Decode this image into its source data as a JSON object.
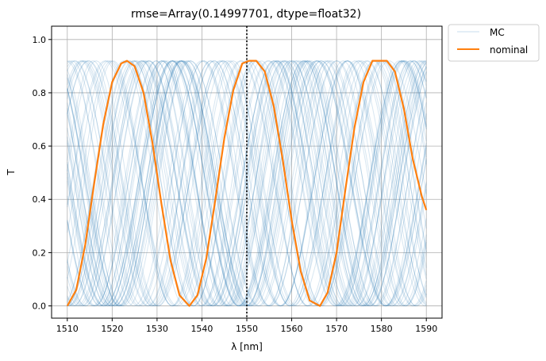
{
  "chart_data": {
    "type": "line",
    "title": "rmse=Array(0.14997701, dtype=float32)",
    "xlabel": "λ [nm]",
    "ylabel": "T",
    "xlim": [
      1506.5,
      1593.5
    ],
    "ylim": [
      -0.046,
      1.05
    ],
    "xticks": [
      1510,
      1520,
      1530,
      1540,
      1550,
      1560,
      1570,
      1580,
      1590
    ],
    "yticks": [
      0.0,
      0.2,
      0.4,
      0.6,
      0.8,
      1.0
    ],
    "xtick_labels": [
      "1510",
      "1520",
      "1530",
      "1540",
      "1550",
      "1560",
      "1570",
      "1580",
      "1590"
    ],
    "ytick_labels": [
      "0.0",
      "0.2",
      "0.4",
      "0.6",
      "0.8",
      "1.0"
    ],
    "grid": true,
    "legend_position": "outside-top-right",
    "vline": {
      "x": 1550,
      "style": "dotted"
    },
    "series": [
      {
        "name": "MC",
        "color": "#1f77b4",
        "note_visual": "many faint Monte-Carlo sinusoids",
        "amplitude_max": 0.92,
        "period_nm_range": [
          26,
          32
        ]
      },
      {
        "name": "nominal",
        "color": "#ff7f0e",
        "x": [
          1510,
          1512,
          1514,
          1516,
          1518,
          1520,
          1522,
          1523.3,
          1525,
          1527,
          1529,
          1531,
          1533,
          1535,
          1537.2,
          1539,
          1541,
          1543,
          1545,
          1547,
          1549,
          1550.5,
          1552.1,
          1554,
          1556,
          1558,
          1560,
          1562,
          1564,
          1566.3,
          1568,
          1570,
          1572,
          1574,
          1576,
          1578,
          1580,
          1581.2,
          1583,
          1585,
          1587,
          1589,
          1590
        ],
        "y": [
          0.0,
          0.06,
          0.23,
          0.46,
          0.68,
          0.84,
          0.91,
          0.92,
          0.9,
          0.8,
          0.61,
          0.38,
          0.17,
          0.04,
          0.0,
          0.04,
          0.18,
          0.4,
          0.63,
          0.81,
          0.91,
          0.92,
          0.92,
          0.88,
          0.75,
          0.55,
          0.32,
          0.13,
          0.02,
          0.0,
          0.05,
          0.2,
          0.44,
          0.67,
          0.84,
          0.92,
          0.92,
          0.92,
          0.88,
          0.74,
          0.55,
          0.41,
          0.36
        ]
      }
    ]
  }
}
